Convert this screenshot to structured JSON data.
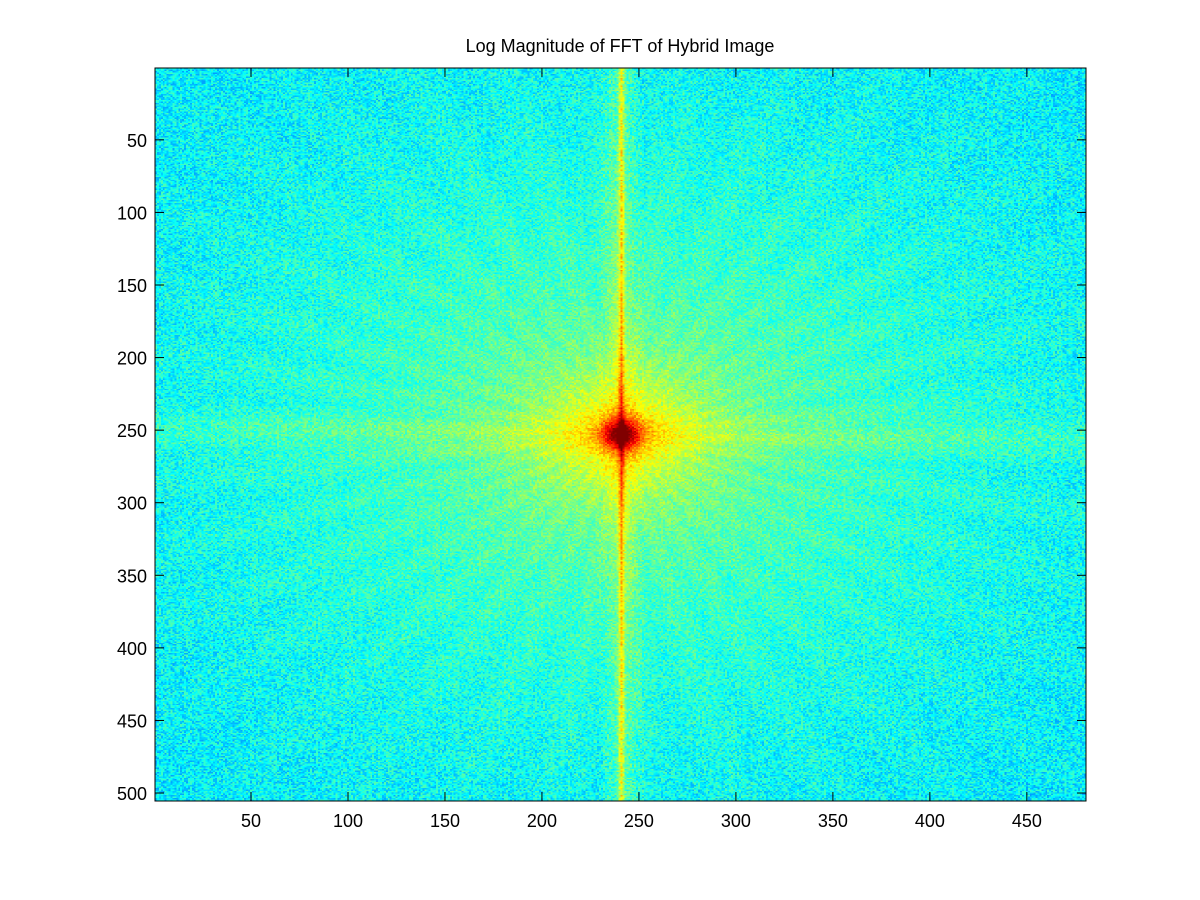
{
  "chart_data": {
    "type": "heatmap",
    "title": "Log Magnitude of FFT of Hybrid Image",
    "xlabel": "",
    "ylabel": "",
    "colormap": "jet",
    "image_size": {
      "cols": 480,
      "rows": 505
    },
    "xlim": [
      0.5,
      480.5
    ],
    "ylim": [
      0.5,
      505.5
    ],
    "y_reversed": true,
    "x_ticks": [
      50,
      100,
      150,
      200,
      250,
      300,
      350,
      400,
      450
    ],
    "x_tick_labels": [
      "50",
      "100",
      "150",
      "200",
      "250",
      "300",
      "350",
      "400",
      "450"
    ],
    "y_ticks": [
      50,
      100,
      150,
      200,
      250,
      300,
      350,
      400,
      450,
      500
    ],
    "y_tick_labels": [
      "50",
      "100",
      "150",
      "200",
      "250",
      "300",
      "350",
      "400",
      "450",
      "500"
    ],
    "peak": {
      "x": 241,
      "y": 253
    },
    "features": {
      "vertical_band_x": 241,
      "horizontal_band_y": 253
    },
    "grid": false,
    "box": true
  }
}
